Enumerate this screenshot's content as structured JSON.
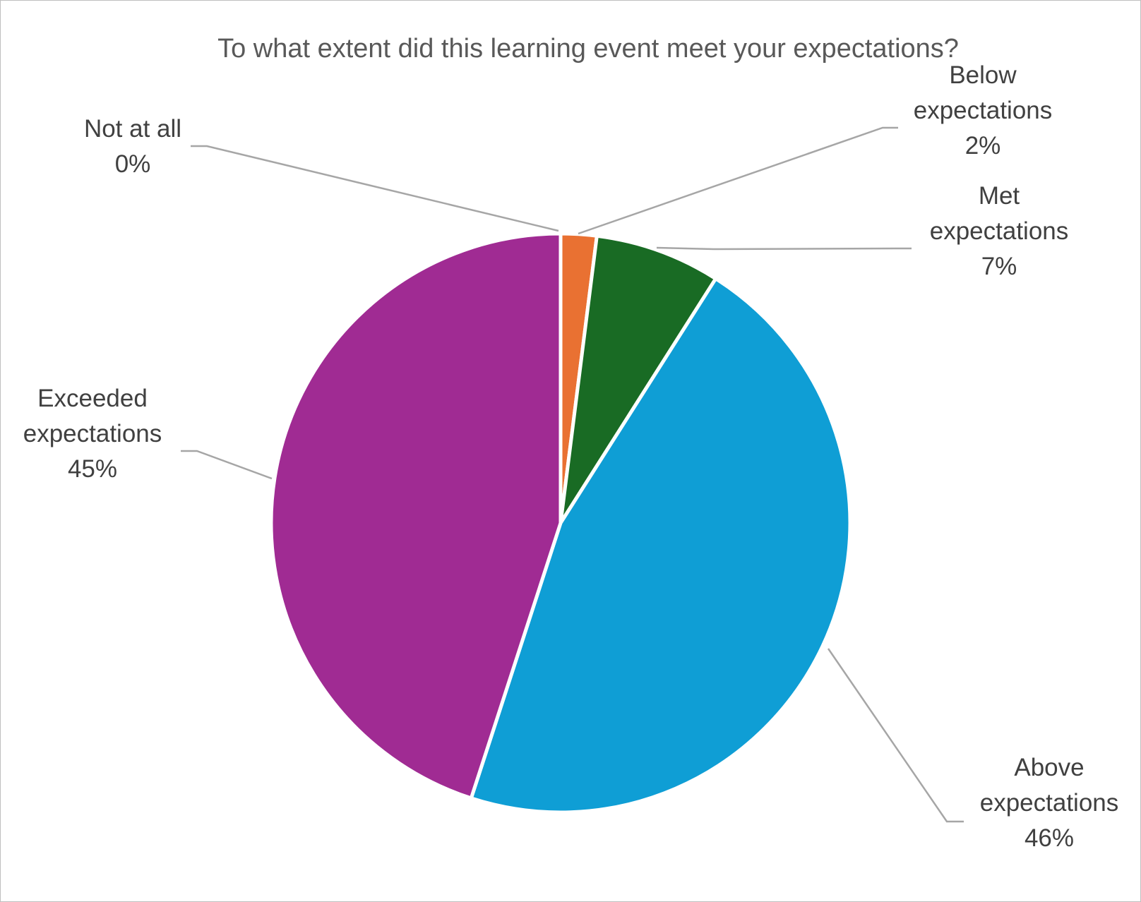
{
  "chart_data": {
    "type": "pie",
    "title": "To what extent did this learning event meet your expectations?",
    "slices": [
      {
        "label": [
          "Not at all"
        ],
        "pct_label": "0%",
        "value": 0,
        "color": "#4472C4"
      },
      {
        "label": [
          "Below",
          "expectations"
        ],
        "pct_label": "2%",
        "value": 2,
        "color": "#E97132"
      },
      {
        "label": [
          "Met",
          "expectations"
        ],
        "pct_label": "7%",
        "value": 7,
        "color": "#196B24"
      },
      {
        "label": [
          "Above",
          "expectations"
        ],
        "pct_label": "46%",
        "value": 46,
        "color": "#0F9ED5"
      },
      {
        "label": [
          "Exceeded",
          "expectations"
        ],
        "pct_label": "45%",
        "value": 45,
        "color": "#A02B93"
      }
    ]
  }
}
